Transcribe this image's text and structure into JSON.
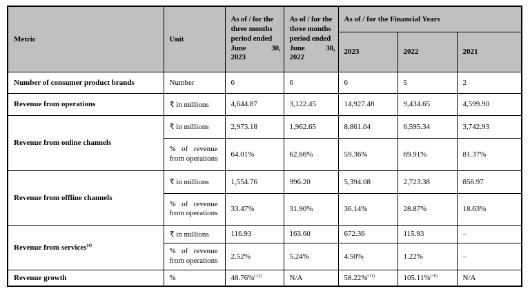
{
  "header": {
    "metric": "Metric",
    "unit": "Unit",
    "period_columns": [
      {
        "lines": [
          "As of / for the",
          "three months",
          "period ended"
        ],
        "month": "June",
        "day": "30,",
        "year": "2023"
      },
      {
        "lines": [
          "As of / for the",
          "three months",
          "period ended"
        ],
        "month": "June",
        "day": "30,",
        "year": "2022"
      }
    ],
    "financial_years_label": "As of / for the Financial Years",
    "financial_years": [
      "2023",
      "2022",
      "2021"
    ]
  },
  "rows": [
    {
      "metric": "Number of consumer product brands",
      "metric_sup": "",
      "subs": [
        {
          "unit": "Number",
          "values": [
            {
              "v": "6"
            },
            {
              "v": "6"
            },
            {
              "v": "6"
            },
            {
              "v": "5"
            },
            {
              "v": "2"
            }
          ]
        }
      ]
    },
    {
      "metric": "Revenue from operations",
      "metric_sup": "",
      "subs": [
        {
          "unit": "₹ in millions",
          "values": [
            {
              "v": "4,644.87"
            },
            {
              "v": "3,122.45"
            },
            {
              "v": "14,927.48"
            },
            {
              "v": "9,434.65"
            },
            {
              "v": "4,599.90"
            }
          ]
        }
      ]
    },
    {
      "metric": "Revenue from online channels",
      "metric_sup": "",
      "subs": [
        {
          "unit": "₹ in millions",
          "values": [
            {
              "v": "2,973.18"
            },
            {
              "v": "1,962.65"
            },
            {
              "v": "8,861.04"
            },
            {
              "v": "6,595.34"
            },
            {
              "v": "3,742.93"
            }
          ]
        },
        {
          "unit": "% of revenue from operations",
          "values": [
            {
              "v": "64.01%"
            },
            {
              "v": "62.86%"
            },
            {
              "v": "59.36%"
            },
            {
              "v": "69.91%"
            },
            {
              "v": "81.37%"
            }
          ]
        }
      ]
    },
    {
      "metric": "Revenue from offline channels",
      "metric_sup": "",
      "subs": [
        {
          "unit": "₹ in millions",
          "values": [
            {
              "v": "1,554.76"
            },
            {
              "v": "996.20"
            },
            {
              "v": "5,394.08"
            },
            {
              "v": "2,723.38"
            },
            {
              "v": "856.97"
            }
          ]
        },
        {
          "unit": "% of revenue from operations",
          "values": [
            {
              "v": "33.47%"
            },
            {
              "v": "31.90%"
            },
            {
              "v": "36.14%"
            },
            {
              "v": "28.87%"
            },
            {
              "v": "18.63%"
            }
          ]
        }
      ]
    },
    {
      "metric": "Revenue from services",
      "metric_sup": "(4)",
      "subs": [
        {
          "unit": "₹ in millions",
          "values": [
            {
              "v": "116.93"
            },
            {
              "v": "163.60"
            },
            {
              "v": "672.36"
            },
            {
              "v": "115.93"
            },
            {
              "v": "–"
            }
          ]
        },
        {
          "unit": "% of revenue from operations",
          "values": [
            {
              "v": "2.52%"
            },
            {
              "v": "5.24%"
            },
            {
              "v": "4.50%"
            },
            {
              "v": "1.22%"
            },
            {
              "v": "–"
            }
          ]
        }
      ]
    },
    {
      "metric": "Revenue growth",
      "metric_sup": "",
      "subs": [
        {
          "unit": "%",
          "values": [
            {
              "v": "48.76%",
              "sup": "(12)"
            },
            {
              "v": "N/A"
            },
            {
              "v": "58.22%",
              "sup": "(11)"
            },
            {
              "v": "105.11%",
              "sup": "(10)"
            },
            {
              "v": "N/A"
            }
          ]
        }
      ]
    }
  ]
}
